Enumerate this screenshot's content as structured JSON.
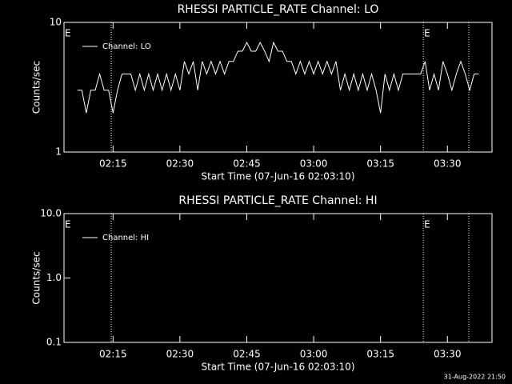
{
  "chart_data": [
    {
      "type": "line",
      "title": "RHESSI PARTICLE_RATE Channel: LO",
      "xlabel": "Start Time (07-Jun-16 02:03:10)",
      "ylabel": "Counts/sec",
      "log_y": true,
      "ylim": [
        1,
        10
      ],
      "yticks": [
        1,
        10
      ],
      "xlim": [
        124,
        220
      ],
      "xticks": [
        {
          "value": 135,
          "label": "02:15"
        },
        {
          "value": 150,
          "label": "02:30"
        },
        {
          "value": 165,
          "label": "02:45"
        },
        {
          "value": 180,
          "label": "03:00"
        },
        {
          "value": 195,
          "label": "03:15"
        },
        {
          "value": 210,
          "label": "03:30"
        }
      ],
      "vlines": [
        134.6,
        204.6,
        214.8
      ],
      "annotations": [
        {
          "text": "E",
          "x": 124
        },
        {
          "text": "E",
          "x": 204.6
        }
      ],
      "x": [
        127,
        128,
        129,
        130,
        131,
        132,
        133,
        134,
        135,
        136,
        137,
        138,
        139,
        140,
        141,
        142,
        143,
        144,
        145,
        146,
        147,
        148,
        149,
        150,
        151,
        152,
        153,
        154,
        155,
        156,
        157,
        158,
        159,
        160,
        161,
        162,
        163,
        164,
        165,
        166,
        167,
        168,
        169,
        170,
        171,
        172,
        173,
        174,
        175,
        176,
        177,
        178,
        179,
        180,
        181,
        182,
        183,
        184,
        185,
        186,
        187,
        188,
        189,
        190,
        191,
        192,
        193,
        194,
        195,
        196,
        197,
        198,
        199,
        200,
        201,
        202,
        203,
        204,
        205,
        206,
        207,
        208,
        209,
        210,
        211,
        212,
        213,
        214,
        215,
        216,
        217
      ],
      "series": [
        {
          "name": "Channel: LO",
          "color": "#ffffff",
          "values": [
            3,
            3,
            2,
            3,
            3,
            4,
            3,
            3,
            2,
            3,
            4,
            4,
            4,
            3,
            4,
            3,
            4,
            3,
            4,
            3,
            4,
            3,
            4,
            3,
            5,
            4,
            5,
            3,
            5,
            4,
            5,
            4,
            5,
            4,
            5,
            5,
            6,
            6,
            7,
            6,
            6,
            7,
            6,
            5,
            7,
            6,
            6,
            5,
            5,
            4,
            5,
            4,
            5,
            4,
            5,
            4,
            5,
            4,
            5,
            3,
            4,
            3,
            4,
            3,
            4,
            3,
            4,
            3,
            2,
            4,
            3,
            4,
            3,
            4,
            4,
            4,
            4,
            4,
            5,
            3,
            4,
            3,
            5,
            4,
            3,
            4,
            5,
            4,
            3,
            4,
            4
          ]
        }
      ]
    },
    {
      "type": "line",
      "title": "RHESSI PARTICLE_RATE Channel: HI",
      "xlabel": "Start Time (07-Jun-16 02:03:10)",
      "ylabel": "Counts/sec",
      "log_y": true,
      "ylim": [
        0.1,
        10
      ],
      "yticks": [
        0.1,
        {
          "value": 1,
          "label": "1.0"
        },
        {
          "value": 10,
          "label": "10.0"
        }
      ],
      "xlim": [
        124,
        220
      ],
      "xticks": [
        {
          "value": 135,
          "label": "02:15"
        },
        {
          "value": 150,
          "label": "02:30"
        },
        {
          "value": 165,
          "label": "02:45"
        },
        {
          "value": 180,
          "label": "03:00"
        },
        {
          "value": 195,
          "label": "03:15"
        },
        {
          "value": 210,
          "label": "03:30"
        }
      ],
      "vlines": [
        134.6,
        204.6,
        214.8
      ],
      "annotations": [
        {
          "text": "E",
          "x": 124
        },
        {
          "text": "E",
          "x": 204.6
        }
      ],
      "x": [],
      "series": [
        {
          "name": "Channel: HI",
          "color": "#ffffff",
          "values": []
        }
      ]
    }
  ],
  "footer": "31-Aug-2022 21:50"
}
